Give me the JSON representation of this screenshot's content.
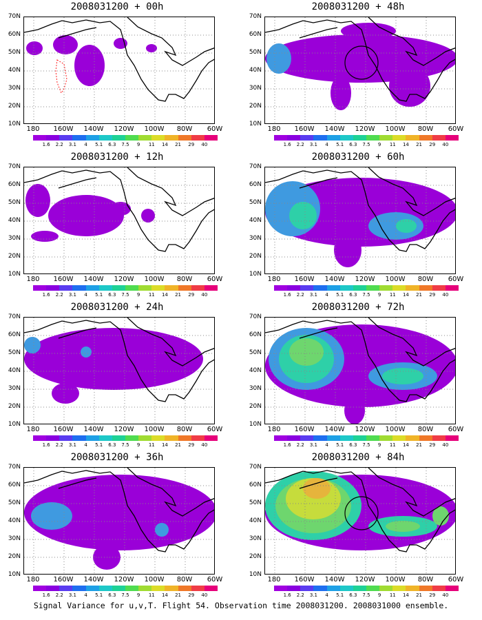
{
  "panels": [
    {
      "title": "2008031200 + 00h",
      "circle": false,
      "blobs": [
        [
          "#9a00d8",
          95,
          70,
          22,
          30
        ],
        [
          "#9a00d8",
          60,
          40,
          18,
          14
        ],
        [
          "#9a00d8",
          15,
          45,
          12,
          10
        ],
        [
          "#9a00d8",
          140,
          38,
          10,
          8
        ],
        [
          "#9a00d8",
          185,
          45,
          8,
          6
        ]
      ],
      "redbox": true
    },
    {
      "title": "2008031200 + 48h",
      "circle": true,
      "blobs": [
        [
          "#9a00d8",
          140,
          60,
          140,
          35
        ],
        [
          "#9a00d8",
          150,
          20,
          40,
          12
        ],
        [
          "#3f9ae0",
          20,
          60,
          18,
          22
        ],
        [
          "#3f9ae0",
          210,
          85,
          10,
          14
        ],
        [
          "#9a00d8",
          110,
          110,
          15,
          25
        ],
        [
          "#9a00d8",
          210,
          100,
          30,
          30
        ]
      ],
      "redbox": false
    },
    {
      "title": "2008031200 + 12h",
      "circle": false,
      "blobs": [
        [
          "#9a00d8",
          20,
          48,
          18,
          24
        ],
        [
          "#9a00d8",
          90,
          70,
          55,
          30
        ],
        [
          "#9a00d8",
          180,
          70,
          10,
          10
        ],
        [
          "#9a00d8",
          30,
          100,
          20,
          8
        ],
        [
          "#9a00d8",
          140,
          60,
          15,
          10
        ]
      ],
      "redbox": false
    },
    {
      "title": "2008031200 + 60h",
      "circle": false,
      "blobs": [
        [
          "#9a00d8",
          140,
          65,
          140,
          50
        ],
        [
          "#3f9ae0",
          40,
          60,
          40,
          40
        ],
        [
          "#2ed0a8",
          55,
          70,
          20,
          20
        ],
        [
          "#3f9ae0",
          190,
          85,
          40,
          20
        ],
        [
          "#2ed0a8",
          205,
          85,
          15,
          10
        ],
        [
          "#9a00d8",
          120,
          120,
          20,
          25
        ]
      ],
      "redbox": false
    },
    {
      "title": "2008031200 + 24h",
      "circle": false,
      "blobs": [
        [
          "#9a00d8",
          130,
          60,
          130,
          45
        ],
        [
          "#3f9ae0",
          12,
          40,
          12,
          12
        ],
        [
          "#3f9ae0",
          90,
          50,
          8,
          8
        ],
        [
          "#9a00d8",
          60,
          110,
          20,
          15
        ]
      ],
      "redbox": false
    },
    {
      "title": "2008031200 + 72h",
      "circle": false,
      "blobs": [
        [
          "#9a00d8",
          140,
          70,
          140,
          60
        ],
        [
          "#3f9ae0",
          60,
          60,
          55,
          45
        ],
        [
          "#2ed0a8",
          60,
          60,
          40,
          35
        ],
        [
          "#6ed66e",
          60,
          50,
          25,
          20
        ],
        [
          "#3f9ae0",
          200,
          85,
          50,
          20
        ],
        [
          "#2ed0a8",
          200,
          85,
          30,
          12
        ],
        [
          "#9a00d8",
          130,
          135,
          15,
          20
        ]
      ],
      "redbox": false
    },
    {
      "title": "2008031200 + 36h",
      "circle": false,
      "blobs": [
        [
          "#9a00d8",
          140,
          65,
          140,
          55
        ],
        [
          "#3f9ae0",
          40,
          70,
          30,
          20
        ],
        [
          "#3f9ae0",
          200,
          90,
          10,
          10
        ],
        [
          "#9a00d8",
          120,
          130,
          20,
          18
        ]
      ],
      "redbox": false
    },
    {
      "title": "2008031200 + 84h",
      "circle": true,
      "blobs": [
        [
          "#9a00d8",
          140,
          65,
          140,
          55
        ],
        [
          "#2ed0a8",
          70,
          55,
          70,
          50
        ],
        [
          "#6ed66e",
          70,
          55,
          55,
          40
        ],
        [
          "#c6dc3c",
          70,
          45,
          40,
          30
        ],
        [
          "#e6b43c",
          75,
          30,
          20,
          15
        ],
        [
          "#2ed0a8",
          200,
          85,
          50,
          15
        ],
        [
          "#6ed66e",
          200,
          85,
          25,
          8
        ],
        [
          "#6ed66e",
          255,
          70,
          12,
          14
        ]
      ],
      "redbox": false
    }
  ],
  "yticks": [
    "70N",
    "60N",
    "50N",
    "40N",
    "30N",
    "20N",
    "10N"
  ],
  "xticks": [
    "180",
    "160W",
    "140W",
    "120W",
    "100W",
    "80W",
    "60W"
  ],
  "colorbar_labels": [
    "1.6",
    "2.2",
    "3.1",
    "4",
    "5.1",
    "6.3",
    "7.5",
    "9",
    "11",
    "14",
    "21",
    "29",
    "40"
  ],
  "colorbar_colors": [
    "#a000e0",
    "#8a00e0",
    "#5a3cf0",
    "#1e6ef0",
    "#1ea0e6",
    "#1ec8c8",
    "#1ed296",
    "#50dc50",
    "#a0dc32",
    "#dcdc28",
    "#f0b428",
    "#f07828",
    "#f03c46",
    "#e6007a"
  ],
  "caption": "Signal Variance for u,v,T. Flight 54. Observation time 2008031200. 2008031000 ensemble."
}
